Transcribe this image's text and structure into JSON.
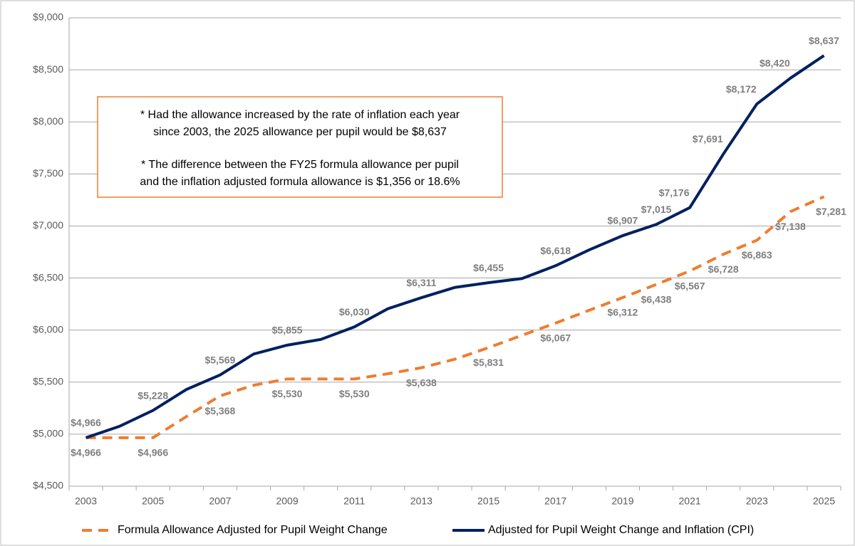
{
  "chart_data": {
    "type": "line",
    "categories": [
      "2003",
      null,
      "2005",
      null,
      "2007",
      null,
      "2009",
      null,
      "2011",
      null,
      "2013",
      null,
      "2015",
      null,
      "2017",
      null,
      "2019",
      null,
      "2021",
      null,
      "2023",
      null,
      "2025"
    ],
    "series": [
      {
        "name": "Formula Allowance Adjusted for Pupil Weight Change",
        "color": "#ed7d31",
        "dashed": true,
        "values": [
          4966,
          4966,
          4966,
          5170,
          5368,
          5470,
          5530,
          5530,
          5530,
          5580,
          5638,
          5720,
          5831,
          5950,
          6067,
          6190,
          6312,
          6438,
          6567,
          6728,
          6863,
          7138,
          7281
        ],
        "value_labels": [
          "$4,966",
          null,
          "$4,966",
          null,
          "$5,368",
          null,
          "$5,530",
          null,
          "$5,530",
          null,
          "$5,638",
          null,
          "$5,831",
          null,
          "$6,067",
          null,
          "$6,312",
          "$6,438",
          "$6,567",
          "$6,728",
          "$6,863",
          "$7,138",
          "$7,281"
        ]
      },
      {
        "name": "Adjusted for Pupil Weight Change and Inflation (CPI)",
        "color": "#002060",
        "dashed": false,
        "values": [
          4966,
          5075,
          5228,
          5430,
          5569,
          5770,
          5855,
          5910,
          6030,
          6205,
          6311,
          6410,
          6455,
          6495,
          6618,
          6770,
          6907,
          7015,
          7176,
          7691,
          8172,
          8420,
          8637
        ],
        "value_labels": [
          "$4,966",
          null,
          "$5,228",
          null,
          "$5,569",
          null,
          "$5,855",
          null,
          "$6,030",
          null,
          "$6,311",
          null,
          "$6,455",
          null,
          "$6,618",
          null,
          "$6,907",
          "$7,015",
          "$7,176",
          "$7,691",
          "$8,172",
          "$8,420",
          "$8,637"
        ]
      }
    ],
    "ylim": [
      4500,
      9000
    ],
    "yticks": [
      {
        "value": 4500,
        "label": "$4,500"
      },
      {
        "value": 5000,
        "label": "$5,000"
      },
      {
        "value": 5500,
        "label": "$5,500"
      },
      {
        "value": 6000,
        "label": "$6,000"
      },
      {
        "value": 6500,
        "label": "$6,500"
      },
      {
        "value": 7000,
        "label": "$7,000"
      },
      {
        "value": 7500,
        "label": "$7,500"
      },
      {
        "value": 8000,
        "label": "$8,000"
      },
      {
        "value": 8500,
        "label": "$8,500"
      },
      {
        "value": 9000,
        "label": "$9,000"
      }
    ],
    "grid": true,
    "legend": "bottom",
    "annotation": [
      "* Had the allowance increased by the rate of inflation each year",
      "since 2003, the 2025 allowance per pupil would be $8,637",
      "* The difference between the FY25 formula allowance per pupil",
      "and the inflation adjusted formula allowance is $1,356 or 18.6%"
    ]
  }
}
